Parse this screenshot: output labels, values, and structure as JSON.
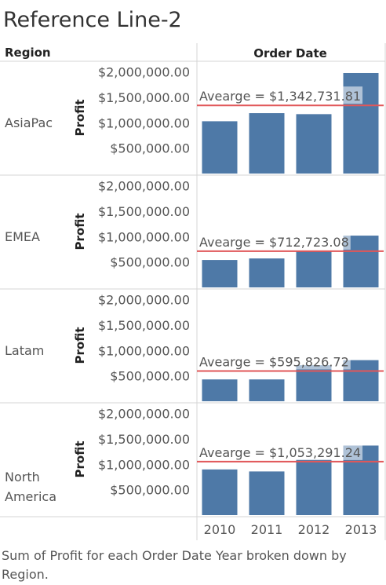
{
  "title": "Reference Line-2",
  "caption": "Sum of Profit for each Order Date Year broken down by Region.",
  "chart_data": {
    "type": "bar",
    "row_header": "Region",
    "column_header": "Order Date",
    "ylabel": "Profit",
    "categories": [
      "2010",
      "2011",
      "2012",
      "2013"
    ],
    "ylim": [
      0,
      2150000
    ],
    "yticks": [
      500000,
      1000000,
      1500000,
      2000000
    ],
    "ytick_labels": [
      "$500,000.00",
      "$1,000,000.00",
      "$1,500,000.00",
      "$2,000,000.00"
    ],
    "bar_color": "#4e79a7",
    "reference_line_color": "#e15759",
    "reference_line_label": "Avearge",
    "panels": [
      {
        "region": [
          "AsiaPac"
        ],
        "values": [
          1030000,
          1190000,
          1170000,
          1980000
        ],
        "average": 1342731.81,
        "average_label": "Avearge = $1,342,731.81"
      },
      {
        "region": [
          "EMEA"
        ],
        "values": [
          540000,
          570000,
          720000,
          1020000
        ],
        "average": 712723.08,
        "average_label": "Avearge = $712,723.08"
      },
      {
        "region": [
          "Latam"
        ],
        "values": [
          430000,
          430000,
          710000,
          810000
        ],
        "average": 595826.72,
        "average_label": "Avearge = $595,826.72"
      },
      {
        "region": [
          "North",
          "America"
        ],
        "values": [
          900000,
          860000,
          1090000,
          1370000
        ],
        "average": 1053291.24,
        "average_label": "Avearge = $1,053,291.24"
      }
    ]
  }
}
